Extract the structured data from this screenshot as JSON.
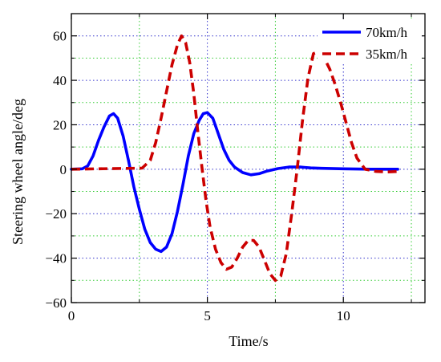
{
  "chart_data": {
    "type": "line",
    "title": "",
    "xlabel": "Time/s",
    "ylabel": "Steering wheel angle/deg",
    "xlim": [
      0,
      13
    ],
    "ylim": [
      -60,
      70
    ],
    "x_ticks": [
      0,
      5,
      10
    ],
    "y_ticks": [
      -60,
      -40,
      -20,
      0,
      20,
      40,
      60
    ],
    "grid": true,
    "legend_position": "top-right",
    "series": [
      {
        "name": "70km/h",
        "color": "#0000ff",
        "style": "solid",
        "x": [
          0,
          0.4,
          0.6,
          0.8,
          1.0,
          1.2,
          1.4,
          1.55,
          1.7,
          1.9,
          2.1,
          2.3,
          2.5,
          2.7,
          2.9,
          3.1,
          3.3,
          3.5,
          3.7,
          3.9,
          4.1,
          4.3,
          4.5,
          4.7,
          4.85,
          5.0,
          5.2,
          5.4,
          5.6,
          5.8,
          6.0,
          6.3,
          6.6,
          6.9,
          7.2,
          7.6,
          8.0,
          8.4,
          8.8,
          9.2,
          10.0,
          11.0,
          12.0
        ],
        "y": [
          0,
          0.2,
          1.5,
          6,
          13,
          19,
          24,
          25,
          23,
          15,
          4,
          -8,
          -18,
          -27,
          -33,
          -36,
          -37,
          -35,
          -29,
          -19,
          -7,
          6,
          16,
          22,
          25,
          25.5,
          23,
          16,
          9,
          4,
          1,
          -1.5,
          -2.5,
          -2,
          -0.8,
          0.3,
          1,
          1,
          0.6,
          0.4,
          0.2,
          0,
          0
        ]
      },
      {
        "name": "35km/h",
        "color": "#cc0000",
        "style": "dashed",
        "x": [
          0,
          2.6,
          2.9,
          3.1,
          3.3,
          3.5,
          3.7,
          3.9,
          4.05,
          4.2,
          4.35,
          4.5,
          4.65,
          4.8,
          4.95,
          5.1,
          5.3,
          5.5,
          5.7,
          5.9,
          6.1,
          6.3,
          6.5,
          6.7,
          6.9,
          7.1,
          7.3,
          7.5,
          7.7,
          7.9,
          8.1,
          8.3,
          8.5,
          8.7,
          8.9,
          9.1,
          9.3,
          9.5,
          9.7,
          9.9,
          10.1,
          10.3,
          10.5,
          10.8,
          11.2,
          11.6,
          12.0
        ],
        "y": [
          0,
          0.5,
          4,
          12,
          23,
          35,
          47,
          56,
          60,
          57,
          48,
          34,
          17,
          1,
          -14,
          -26,
          -36,
          -42,
          -45,
          -44,
          -40,
          -35,
          -32,
          -32,
          -35,
          -41,
          -47,
          -50,
          -48,
          -38,
          -20,
          0,
          22,
          41,
          52,
          53,
          50,
          45,
          38,
          30,
          21,
          12,
          5,
          0,
          -1,
          -1.2,
          -1
        ]
      }
    ]
  }
}
